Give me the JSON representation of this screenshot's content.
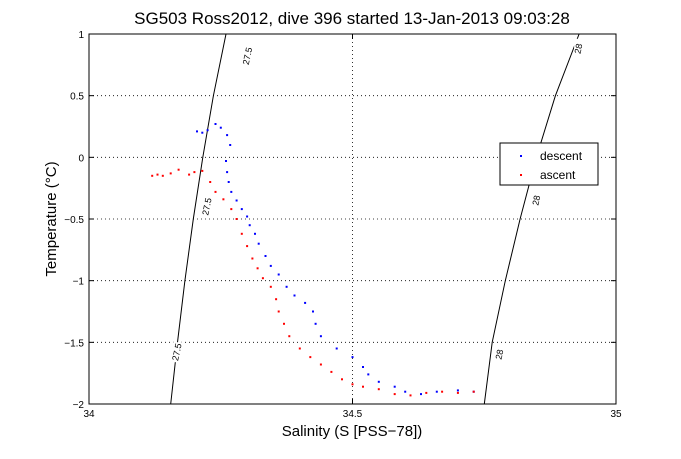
{
  "chart_data": {
    "type": "scatter",
    "title": "SG503 Ross2012, dive 396 started 13-Jan-2013 09:03:28",
    "xlabel": "Salinity (S [PSS−78])",
    "ylabel": "Temperature (°C)",
    "xlim": [
      34,
      35
    ],
    "ylim": [
      -2,
      1
    ],
    "x_ticks": [
      34,
      34.5,
      35
    ],
    "x_tick_labels": [
      "34",
      "34.5",
      "35"
    ],
    "y_ticks": [
      -2,
      -1.5,
      -1,
      -0.5,
      0,
      0.5,
      1
    ],
    "y_tick_labels": [
      "−2",
      "−1.5",
      "−1",
      "−0.5",
      "0",
      "0.5",
      "1"
    ],
    "grid": true,
    "legend_position": "right",
    "density_contours": [
      {
        "label": "27.5",
        "points": [
          [
            34.155,
            -2.0
          ],
          [
            34.168,
            -1.5
          ],
          [
            34.182,
            -1.0
          ],
          [
            34.198,
            -0.5
          ],
          [
            34.216,
            0.0
          ],
          [
            34.236,
            0.5
          ],
          [
            34.26,
            1.0
          ]
        ],
        "label_values": [
          [
            34.168,
            -1.58
          ],
          [
            34.225,
            -0.4
          ],
          [
            34.302,
            0.82
          ]
        ]
      },
      {
        "label": "28",
        "points": [
          [
            34.75,
            -2.0
          ],
          [
            34.765,
            -1.5
          ],
          [
            34.79,
            -1.0
          ],
          [
            34.818,
            -0.5
          ],
          [
            34.849,
            0.0
          ],
          [
            34.885,
            0.5
          ],
          [
            34.93,
            1.0
          ]
        ],
        "label_values": [
          [
            34.78,
            -1.6
          ],
          [
            34.85,
            -0.35
          ],
          [
            34.93,
            0.88
          ]
        ]
      }
    ],
    "series": [
      {
        "name": "descent",
        "color": "#0000ff",
        "points": [
          [
            34.205,
            0.21
          ],
          [
            34.215,
            0.2
          ],
          [
            34.225,
            0.22
          ],
          [
            34.24,
            0.27
          ],
          [
            34.25,
            0.24
          ],
          [
            34.262,
            0.18
          ],
          [
            34.268,
            0.1
          ],
          [
            34.26,
            -0.03
          ],
          [
            34.262,
            -0.12
          ],
          [
            34.265,
            -0.2
          ],
          [
            34.27,
            -0.28
          ],
          [
            34.28,
            -0.35
          ],
          [
            34.29,
            -0.42
          ],
          [
            34.3,
            -0.48
          ],
          [
            34.305,
            -0.55
          ],
          [
            34.315,
            -0.62
          ],
          [
            34.322,
            -0.7
          ],
          [
            34.335,
            -0.8
          ],
          [
            34.345,
            -0.88
          ],
          [
            34.36,
            -0.95
          ],
          [
            34.375,
            -1.05
          ],
          [
            34.39,
            -1.12
          ],
          [
            34.41,
            -1.18
          ],
          [
            34.425,
            -1.25
          ],
          [
            34.43,
            -1.35
          ],
          [
            34.44,
            -1.45
          ],
          [
            34.47,
            -1.55
          ],
          [
            34.5,
            -1.62
          ],
          [
            34.52,
            -1.7
          ],
          [
            34.53,
            -1.76
          ],
          [
            34.55,
            -1.82
          ],
          [
            34.58,
            -1.86
          ],
          [
            34.6,
            -1.9
          ],
          [
            34.63,
            -1.92
          ],
          [
            34.66,
            -1.9
          ],
          [
            34.7,
            -1.89
          ],
          [
            34.73,
            -1.9
          ]
        ]
      },
      {
        "name": "ascent",
        "color": "#ff0000",
        "points": [
          [
            34.12,
            -0.15
          ],
          [
            34.13,
            -0.14
          ],
          [
            34.14,
            -0.15
          ],
          [
            34.155,
            -0.13
          ],
          [
            34.17,
            -0.1
          ],
          [
            34.19,
            -0.14
          ],
          [
            34.2,
            -0.12
          ],
          [
            34.215,
            -0.11
          ],
          [
            34.23,
            -0.2
          ],
          [
            34.24,
            -0.28
          ],
          [
            34.255,
            -0.34
          ],
          [
            34.27,
            -0.42
          ],
          [
            34.28,
            -0.5
          ],
          [
            34.29,
            -0.62
          ],
          [
            34.3,
            -0.72
          ],
          [
            34.31,
            -0.82
          ],
          [
            34.32,
            -0.9
          ],
          [
            34.33,
            -0.98
          ],
          [
            34.345,
            -1.05
          ],
          [
            34.355,
            -1.15
          ],
          [
            34.36,
            -1.25
          ],
          [
            34.37,
            -1.35
          ],
          [
            34.38,
            -1.45
          ],
          [
            34.4,
            -1.55
          ],
          [
            34.42,
            -1.62
          ],
          [
            34.44,
            -1.68
          ],
          [
            34.46,
            -1.74
          ],
          [
            34.48,
            -1.8
          ],
          [
            34.5,
            -1.84
          ],
          [
            34.52,
            -1.86
          ],
          [
            34.55,
            -1.88
          ],
          [
            34.58,
            -1.92
          ],
          [
            34.61,
            -1.93
          ],
          [
            34.64,
            -1.91
          ],
          [
            34.67,
            -1.9
          ],
          [
            34.7,
            -1.91
          ],
          [
            34.73,
            -1.9
          ]
        ]
      }
    ]
  }
}
